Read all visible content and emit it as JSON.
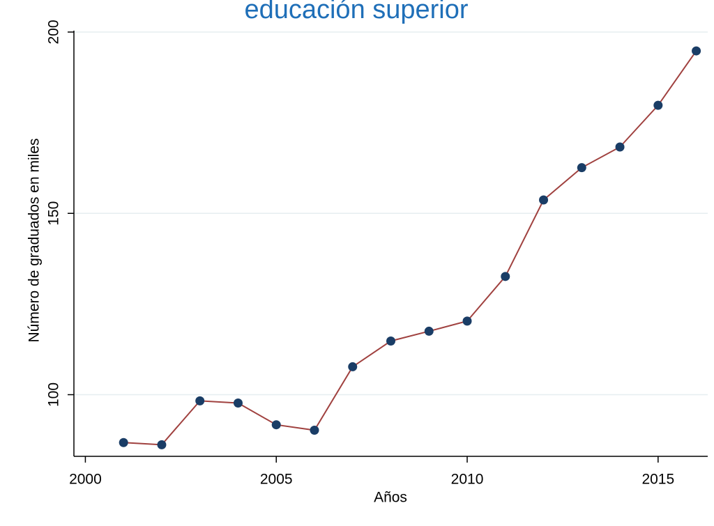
{
  "chart_data": {
    "type": "line",
    "title": "educación superior",
    "xlabel": "Años",
    "ylabel": "Número de graduados en miles",
    "x": [
      2001,
      2002,
      2003,
      2004,
      2005,
      2006,
      2007,
      2008,
      2009,
      2010,
      2011,
      2012,
      2013,
      2014,
      2015,
      2016
    ],
    "values": [
      86.8,
      86.2,
      98.3,
      97.7,
      91.7,
      90.2,
      107.7,
      114.8,
      117.5,
      120.3,
      132.6,
      153.7,
      162.6,
      168.3,
      179.8,
      194.8
    ],
    "color": "#a0413f",
    "marker_color": "#1a3d66",
    "title_color": "#1f6fb8",
    "xlim": [
      1999.7,
      2016.3
    ],
    "ylim": [
      83,
      200
    ],
    "xticks": [
      2000,
      2005,
      2010,
      2015
    ],
    "yticks": [
      100,
      150,
      200
    ],
    "grid": true
  }
}
